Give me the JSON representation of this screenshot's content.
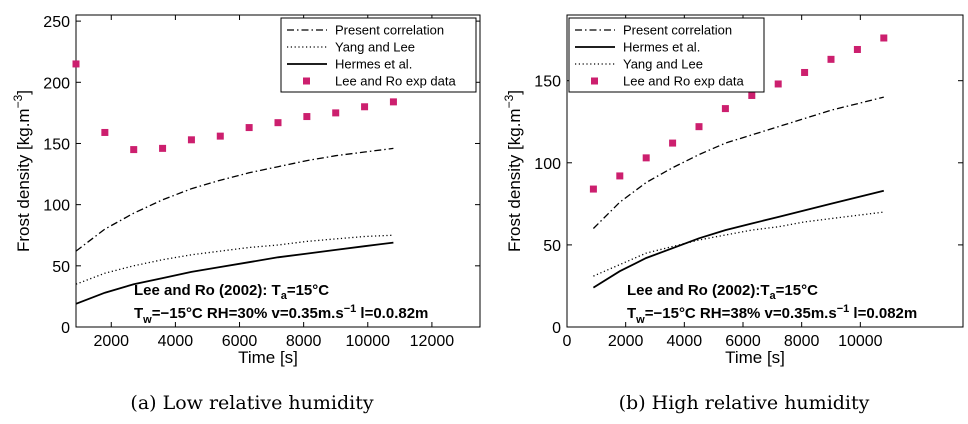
{
  "chart_data": [
    {
      "type": "line",
      "caption": "(a) Low relative humidity",
      "xlabel": "Time [s]",
      "ylabel": "Frost density [kg.m",
      "ylabel_sup": "−3",
      "ylabel_close": "]",
      "xlim": [
        900,
        13500
      ],
      "ylim": [
        0,
        255
      ],
      "xticks": [
        2000,
        4000,
        6000,
        8000,
        10000,
        12000
      ],
      "yticks": [
        0,
        50,
        100,
        150,
        200,
        250
      ],
      "annotation": {
        "line1": "Lee and Ro (2002): T",
        "line1_sub": "a",
        "line1_end": "=15°C",
        "line2_a": "T",
        "line2_sub": "w",
        "line2_b": "=−15°C RH=30% v=0.35m.s",
        "line2_sup": "−1",
        "line2_c": " l=0.0.82m"
      },
      "series": [
        {
          "name": "Present correlation",
          "style": "dashdot",
          "color": "#000000",
          "x": [
            900,
            1800,
            2700,
            3600,
            4500,
            5400,
            6300,
            7200,
            8100,
            9000,
            9900,
            10800
          ],
          "y": [
            62,
            80,
            93,
            104,
            113,
            120,
            126,
            131,
            136,
            140,
            143,
            146
          ]
        },
        {
          "name": "Yang and Lee",
          "style": "dotted",
          "color": "#000000",
          "x": [
            900,
            1800,
            2700,
            3600,
            4500,
            5400,
            6300,
            7200,
            8100,
            9000,
            9900,
            10800
          ],
          "y": [
            35,
            44,
            50,
            55,
            59,
            62,
            65,
            67,
            70,
            72,
            74,
            75
          ]
        },
        {
          "name": "Hermes et al.",
          "style": "solid",
          "color": "#000000",
          "x": [
            900,
            1800,
            2700,
            3600,
            4500,
            5400,
            6300,
            7200,
            8100,
            9000,
            9900,
            10800
          ],
          "y": [
            19,
            28,
            35,
            40,
            45,
            49,
            53,
            57,
            60,
            63,
            66,
            69
          ]
        },
        {
          "name": "Lee and Ro exp data",
          "style": "markers",
          "color": "#cc1f6e",
          "x": [
            900,
            1800,
            2700,
            3600,
            4500,
            5400,
            6300,
            7200,
            8100,
            9000,
            9900,
            10800
          ],
          "y": [
            215,
            159,
            145,
            146,
            153,
            156,
            163,
            167,
            172,
            175,
            180,
            184
          ]
        }
      ]
    },
    {
      "type": "line",
      "caption": "(b) High relative humidity",
      "xlabel": "Time [s]",
      "ylabel": "Frost density [kg.m",
      "ylabel_sup": "−3",
      "ylabel_close": "]",
      "xlim": [
        0,
        13500
      ],
      "ylim": [
        0,
        190
      ],
      "xticks": [
        0,
        2000,
        4000,
        6000,
        8000,
        10000
      ],
      "yticks": [
        0,
        50,
        100,
        150
      ],
      "annotation": {
        "line1": "Lee and Ro (2002):T",
        "line1_sub": "a",
        "line1_end": "=15°C",
        "line2_a": "T",
        "line2_sub": "w",
        "line2_b": "=−15°C RH=38% v=0.35m.s",
        "line2_sup": "−1",
        "line2_c": " l=0.082m"
      },
      "series": [
        {
          "name": "Present correlation",
          "style": "dashdot",
          "color": "#000000",
          "x": [
            900,
            1800,
            2700,
            3600,
            4500,
            5400,
            6300,
            7200,
            8100,
            9000,
            9900,
            10800
          ],
          "y": [
            60,
            76,
            88,
            97,
            105,
            112,
            117,
            122,
            127,
            132,
            136,
            140
          ]
        },
        {
          "name": "Hermes et al.",
          "style": "solid",
          "color": "#000000",
          "x": [
            900,
            1800,
            2700,
            3600,
            4500,
            5400,
            6300,
            7200,
            8100,
            9000,
            9900,
            10800
          ],
          "y": [
            24,
            34,
            42,
            48,
            54,
            59,
            63,
            67,
            71,
            75,
            79,
            83
          ]
        },
        {
          "name": "Yang and Lee",
          "style": "dotted",
          "color": "#000000",
          "x": [
            900,
            1800,
            2700,
            3600,
            4500,
            5400,
            6300,
            7200,
            8100,
            9000,
            9900,
            10800
          ],
          "y": [
            31,
            38,
            45,
            49,
            53,
            56,
            59,
            61,
            64,
            66,
            68,
            70
          ]
        },
        {
          "name": "Lee and Ro exp data",
          "style": "markers",
          "color": "#cc1f6e",
          "x": [
            900,
            1800,
            2700,
            3600,
            4500,
            5400,
            6300,
            7200,
            8100,
            9000,
            9900,
            10800
          ],
          "y": [
            84,
            92,
            103,
            112,
            122,
            133,
            141,
            148,
            155,
            163,
            169,
            176
          ]
        }
      ]
    }
  ]
}
